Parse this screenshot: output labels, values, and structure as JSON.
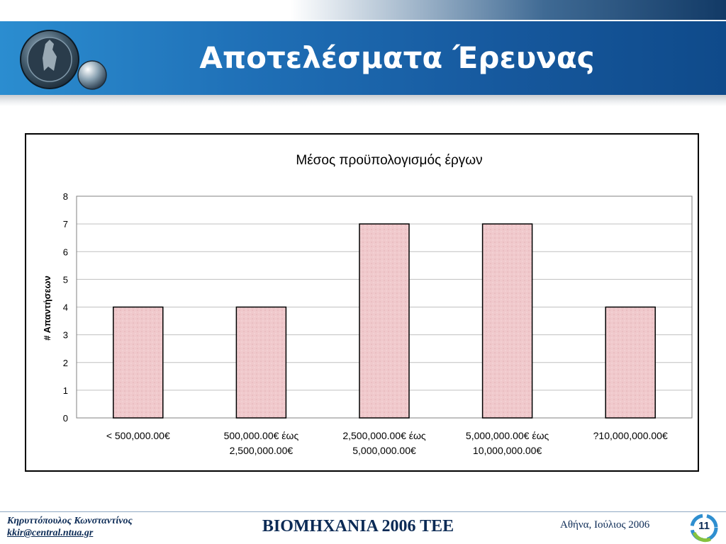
{
  "slide": {
    "title": "Αποτελέσματα Έρευνας"
  },
  "footer": {
    "author": "Κηρυττόπουλος  Κωνσταντίνος",
    "email": "kkir@central.ntua.gr ",
    "event": "ΒΙΟΜΗΧΑΝΙΑ 2006 ΤΕΕ",
    "place_date": "Αθήνα, Ιούλιος 2006",
    "page_number": "11"
  },
  "chart_data": {
    "type": "bar",
    "title": "Μέσος προϋπολογισμός έργων",
    "xlabel": "",
    "ylabel": "# Απαντήσεων",
    "categories": [
      [
        "< 500,000.00€"
      ],
      [
        "500,000.00€ έως",
        "2,500,000.00€"
      ],
      [
        "2,500,000.00€ έως",
        "5,000,000.00€"
      ],
      [
        "5,000,000.00€ έως",
        "10,000,000.00€"
      ],
      [
        "?10,000,000.00€"
      ]
    ],
    "values": [
      4,
      4,
      7,
      7,
      4
    ],
    "ylim": [
      0,
      8
    ],
    "yticks": [
      "0",
      "1",
      "2",
      "3",
      "4",
      "5",
      "6",
      "7",
      "8"
    ],
    "grid": true,
    "legend": "none",
    "colors": {
      "bar_fill": "#f0c9cc",
      "bar_outline": "#000000",
      "grid": "#c0c0c0"
    }
  }
}
